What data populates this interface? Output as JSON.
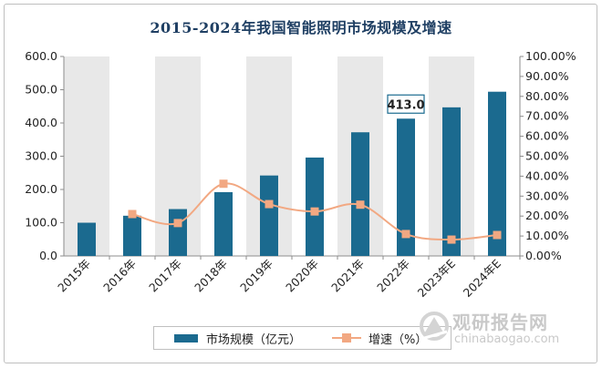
{
  "chart_data": {
    "type": "bar",
    "title": "2015-2024年我国智能照明市场规模及增速",
    "categories": [
      "2015年",
      "2016年",
      "2017年",
      "2018年",
      "2019年",
      "2020年",
      "2021年",
      "2022年",
      "2023年E",
      "2024年E"
    ],
    "series": [
      {
        "name": "市场规模（亿元）",
        "type": "bar",
        "axis": "left",
        "values": [
          100,
          121,
          141,
          192,
          242,
          296,
          372,
          413,
          447,
          494
        ]
      },
      {
        "name": "增速（%）",
        "type": "line",
        "axis": "right",
        "values": [
          null,
          21.0,
          16.5,
          36.2,
          26.0,
          22.3,
          25.7,
          11.0,
          8.2,
          10.5
        ]
      }
    ],
    "y_left": {
      "ylim": [
        0,
        600
      ],
      "ticks": [
        "0.0",
        "100.0",
        "200.0",
        "300.0",
        "400.0",
        "500.0",
        "600.0"
      ]
    },
    "y_right": {
      "ylim": [
        0,
        100
      ],
      "ticks": [
        "0.00%",
        "10.00%",
        "20.00%",
        "30.00%",
        "40.00%",
        "50.00%",
        "60.00%",
        "70.00%",
        "80.00%",
        "90.00%",
        "100.00%"
      ]
    },
    "annotations": [
      {
        "category": "2022年",
        "text": "413.0"
      }
    ],
    "xlabel": "",
    "ylabel": "",
    "legend_position": "bottom",
    "colors": {
      "bar": "#1b6a8f",
      "line": "#f2a882",
      "band": "#e8e8e8",
      "title": "#1f3f63"
    }
  },
  "watermark": {
    "name": "观研报告网",
    "url": "chinabaogao.com"
  }
}
